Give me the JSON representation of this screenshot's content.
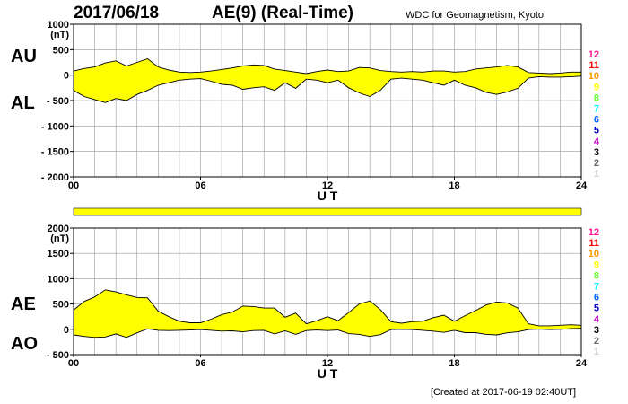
{
  "title": {
    "date": "2017/06/18",
    "index": "AE(9)  (Real-Time)"
  },
  "source": "WDC for Geomagnetism, Kyoto",
  "created": "[Created at 2017-06-19 02:40UT]",
  "side_labels": {
    "au": "AU",
    "al": "AL",
    "ae": "AE",
    "ao": "AO"
  },
  "colors": {
    "fill": "#ffff00",
    "line": "#000000",
    "grid": "#999999",
    "station_counts": [
      "#ff1493",
      "#ff0000",
      "#ff9900",
      "#ffff00",
      "#66ff33",
      "#00ffff",
      "#0066ff",
      "#0000cc",
      "#cc00cc",
      "#000000",
      "#666666",
      "#cccccc"
    ]
  },
  "station_counts": [
    "12",
    "11",
    "10",
    "9",
    "8",
    "7",
    "6",
    "5",
    "4",
    "3",
    "2",
    "1"
  ],
  "data_coverage": {
    "from_ut": 0,
    "to_ut": 24,
    "stations": 9
  },
  "chart_data": [
    {
      "type": "area",
      "unit": "(nT)",
      "xlabel": "U T",
      "xlim": [
        0,
        24
      ],
      "xticks": [
        0,
        6,
        12,
        18,
        24
      ],
      "xtick_labels": [
        "00",
        "06",
        "12",
        "18",
        "24"
      ],
      "ylim": [
        -2000,
        1000
      ],
      "yticks": [
        1000,
        500,
        0,
        -500,
        -1000,
        -1500,
        -2000
      ],
      "ytick_labels": [
        "1000",
        "500",
        "0",
        "- 500",
        "- 1000",
        "- 1500",
        "- 2000"
      ],
      "grid": true,
      "series": [
        {
          "name": "AU",
          "x": [
            0,
            0.5,
            1,
            1.5,
            2,
            2.5,
            3,
            3.5,
            4,
            4.5,
            5,
            5.5,
            6,
            6.5,
            7,
            7.5,
            8,
            8.5,
            9,
            9.5,
            10,
            10.5,
            11,
            11.5,
            12,
            12.5,
            13,
            13.5,
            14,
            14.5,
            15,
            15.5,
            16,
            16.5,
            17,
            17.5,
            18,
            18.5,
            19,
            19.5,
            20,
            20.5,
            21,
            21.5,
            22,
            22.5,
            23,
            23.5,
            24
          ],
          "values": [
            80,
            130,
            160,
            240,
            280,
            180,
            250,
            320,
            160,
            100,
            60,
            50,
            60,
            80,
            110,
            140,
            180,
            200,
            190,
            120,
            90,
            60,
            30,
            70,
            100,
            70,
            80,
            150,
            140,
            90,
            70,
            60,
            70,
            60,
            80,
            80,
            60,
            70,
            120,
            140,
            160,
            190,
            160,
            50,
            40,
            30,
            40,
            60,
            60
          ]
        },
        {
          "name": "AL",
          "x": [
            0,
            0.5,
            1,
            1.5,
            2,
            2.5,
            3,
            3.5,
            4,
            4.5,
            5,
            5.5,
            6,
            6.5,
            7,
            7.5,
            8,
            8.5,
            9,
            9.5,
            10,
            10.5,
            11,
            11.5,
            12,
            12.5,
            13,
            13.5,
            14,
            14.5,
            15,
            15.5,
            16,
            16.5,
            17,
            17.5,
            18,
            18.5,
            19,
            19.5,
            20,
            20.5,
            21,
            21.5,
            22,
            22.5,
            23,
            23.5,
            24
          ],
          "values": [
            -300,
            -420,
            -480,
            -540,
            -460,
            -500,
            -380,
            -300,
            -200,
            -150,
            -100,
            -80,
            -70,
            -120,
            -180,
            -200,
            -280,
            -250,
            -230,
            -300,
            -150,
            -260,
            -80,
            -100,
            -150,
            -100,
            -250,
            -350,
            -420,
            -300,
            -80,
            -60,
            -80,
            -100,
            -150,
            -200,
            -100,
            -200,
            -250,
            -340,
            -380,
            -330,
            -260,
            -60,
            -30,
            -40,
            -40,
            -30,
            -20
          ]
        }
      ]
    },
    {
      "type": "area",
      "unit": "(nT)",
      "xlabel": "U T",
      "xlim": [
        0,
        24
      ],
      "xticks": [
        0,
        6,
        12,
        18,
        24
      ],
      "xtick_labels": [
        "00",
        "06",
        "12",
        "18",
        "24"
      ],
      "ylim": [
        -500,
        2000
      ],
      "yticks": [
        2000,
        1500,
        1000,
        500,
        0,
        -500
      ],
      "ytick_labels": [
        "2000",
        "1500",
        "1000",
        "500",
        "0",
        "- 500"
      ],
      "grid": true,
      "series": [
        {
          "name": "AE",
          "x": [
            0,
            0.5,
            1,
            1.5,
            2,
            2.5,
            3,
            3.5,
            4,
            4.5,
            5,
            5.5,
            6,
            6.5,
            7,
            7.5,
            8,
            8.5,
            9,
            9.5,
            10,
            10.5,
            11,
            11.5,
            12,
            12.5,
            13,
            13.5,
            14,
            14.5,
            15,
            15.5,
            16,
            16.5,
            17,
            17.5,
            18,
            18.5,
            19,
            19.5,
            20,
            20.5,
            21,
            21.5,
            22,
            22.5,
            23,
            23.5,
            24
          ],
          "values": [
            380,
            550,
            640,
            780,
            740,
            680,
            630,
            620,
            360,
            250,
            160,
            130,
            130,
            200,
            290,
            340,
            460,
            450,
            420,
            420,
            240,
            320,
            110,
            170,
            250,
            170,
            330,
            500,
            560,
            390,
            150,
            120,
            150,
            160,
            230,
            280,
            160,
            270,
            370,
            480,
            540,
            520,
            420,
            110,
            70,
            70,
            80,
            90,
            80
          ]
        },
        {
          "name": "AO",
          "x": [
            0,
            0.5,
            1,
            1.5,
            2,
            2.5,
            3,
            3.5,
            4,
            4.5,
            5,
            5.5,
            6,
            6.5,
            7,
            7.5,
            8,
            8.5,
            9,
            9.5,
            10,
            10.5,
            11,
            11.5,
            12,
            12.5,
            13,
            13.5,
            14,
            14.5,
            15,
            15.5,
            16,
            16.5,
            17,
            17.5,
            18,
            18.5,
            19,
            19.5,
            20,
            20.5,
            21,
            21.5,
            22,
            22.5,
            23,
            23.5,
            24
          ],
          "values": [
            -110,
            -140,
            -160,
            -150,
            -90,
            -160,
            -70,
            10,
            -20,
            -25,
            -20,
            -15,
            -5,
            -20,
            -35,
            -30,
            -50,
            -25,
            -20,
            -90,
            -30,
            -100,
            -25,
            -15,
            -25,
            -15,
            -85,
            -100,
            -140,
            -105,
            -5,
            0,
            -5,
            -20,
            -35,
            -60,
            -20,
            -65,
            -65,
            -100,
            -110,
            -70,
            -50,
            -5,
            5,
            -5,
            0,
            15,
            20
          ]
        }
      ]
    }
  ]
}
